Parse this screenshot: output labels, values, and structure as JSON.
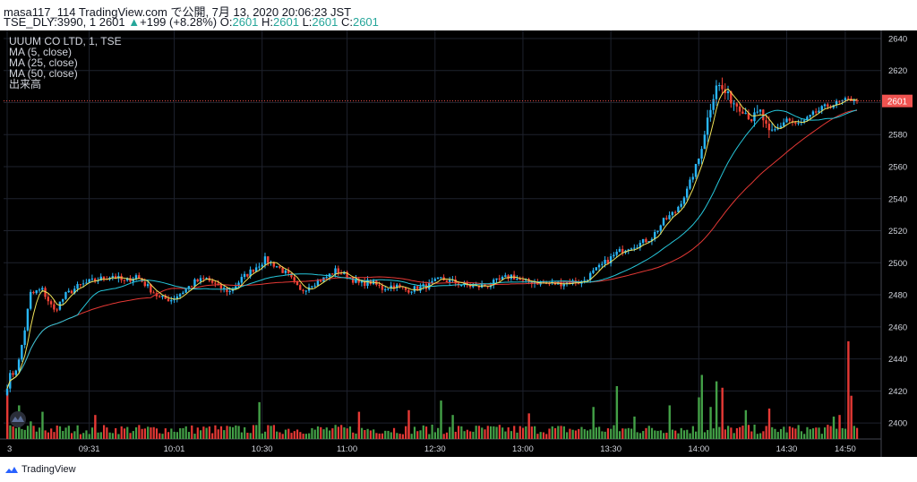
{
  "header": {
    "publisher_line": "masa117_114 TradingView.com で公開, 7月 13, 2020 20:06:23 JST",
    "symbol_prefix": "TSE_DLY:3990, 1 2601 ",
    "change_arrow": "▲",
    "change": "+199 (+8.28%)",
    "o_label": " O:",
    "o_value": "2601",
    "h_label": " H:",
    "h_value": "2601",
    "l_label": " L:",
    "l_value": "2601",
    "c_label": " C:",
    "c_value": "2601"
  },
  "legend": {
    "title": "UUUM CO LTD, 1, TSE",
    "ma5": "MA (5, close)",
    "ma25": "MA (25, close)",
    "ma50": "MA (50, close)",
    "volume": "出来高"
  },
  "colors": {
    "up": "#26a69a",
    "down": "#ef5350",
    "candle_up": "#29b6f6",
    "candle_down": "#f44336",
    "vol_up": "#43a047",
    "vol_down": "#e53935",
    "ma5": "#f0e35a",
    "ma25": "#26c6da",
    "ma50": "#e53935",
    "price_line": "#ef5350",
    "axis_text": "#d1d4dc"
  },
  "footer": {
    "brand": "TradingView",
    "logo_icon": "tradingview-logo-icon"
  },
  "chart_data": {
    "type": "candlestick",
    "title": "UUUM CO LTD, 1, TSE",
    "ylim": [
      2390,
      2645
    ],
    "y_ticks": [
      2400,
      2420,
      2440,
      2460,
      2480,
      2500,
      2520,
      2540,
      2560,
      2580,
      2600,
      2620,
      2640
    ],
    "x_tick_labels": [
      "3",
      "09:31",
      "10:01",
      "10:30",
      "11:00",
      "12:30",
      "13:00",
      "13:30",
      "14:00",
      "14:30",
      "14:50"
    ],
    "x_tick_index": [
      0,
      28,
      57,
      87,
      116,
      146,
      176,
      206,
      236,
      266,
      286
    ],
    "last_price": 2601,
    "last_price_label": "2601",
    "ma_lines": [
      {
        "name": "MA (5, close)",
        "key": "ma5"
      },
      {
        "name": "MA (25, close)",
        "key": "ma25"
      },
      {
        "name": "MA (50, close)",
        "key": "ma50"
      }
    ],
    "anchors": [
      [
        0,
        2425
      ],
      [
        4,
        2438
      ],
      [
        8,
        2480
      ],
      [
        12,
        2483
      ],
      [
        16,
        2470
      ],
      [
        20,
        2480
      ],
      [
        24,
        2485
      ],
      [
        28,
        2488
      ],
      [
        32,
        2490
      ],
      [
        36,
        2492
      ],
      [
        40,
        2488
      ],
      [
        44,
        2492
      ],
      [
        48,
        2485
      ],
      [
        52,
        2478
      ],
      [
        56,
        2477
      ],
      [
        60,
        2482
      ],
      [
        64,
        2488
      ],
      [
        68,
        2490
      ],
      [
        72,
        2485
      ],
      [
        76,
        2482
      ],
      [
        80,
        2490
      ],
      [
        84,
        2496
      ],
      [
        88,
        2502
      ],
      [
        92,
        2498
      ],
      [
        96,
        2492
      ],
      [
        100,
        2482
      ],
      [
        104,
        2487
      ],
      [
        108,
        2490
      ],
      [
        112,
        2495
      ],
      [
        116,
        2492
      ],
      [
        120,
        2487
      ],
      [
        124,
        2488
      ],
      [
        128,
        2484
      ],
      [
        132,
        2486
      ],
      [
        136,
        2483
      ],
      [
        140,
        2484
      ],
      [
        144,
        2486
      ],
      [
        148,
        2490
      ],
      [
        152,
        2488
      ],
      [
        156,
        2486
      ],
      [
        160,
        2485
      ],
      [
        164,
        2486
      ],
      [
        168,
        2489
      ],
      [
        172,
        2492
      ],
      [
        176,
        2488
      ],
      [
        180,
        2488
      ],
      [
        184,
        2487
      ],
      [
        188,
        2487
      ],
      [
        192,
        2488
      ],
      [
        196,
        2488
      ],
      [
        200,
        2494
      ],
      [
        204,
        2500
      ],
      [
        208,
        2506
      ],
      [
        212,
        2510
      ],
      [
        216,
        2512
      ],
      [
        220,
        2516
      ],
      [
        224,
        2526
      ],
      [
        228,
        2532
      ],
      [
        232,
        2545
      ],
      [
        236,
        2565
      ],
      [
        239,
        2590
      ],
      [
        242,
        2612
      ],
      [
        245,
        2606
      ],
      [
        248,
        2600
      ],
      [
        251,
        2596
      ],
      [
        254,
        2590
      ],
      [
        257,
        2594
      ],
      [
        260,
        2580
      ],
      [
        263,
        2584
      ],
      [
        266,
        2590
      ],
      [
        269,
        2586
      ],
      [
        272,
        2588
      ],
      [
        276,
        2594
      ],
      [
        280,
        2598
      ],
      [
        284,
        2600
      ],
      [
        288,
        2602
      ],
      [
        290,
        2603
      ]
    ],
    "volume_spikes": [
      [
        0,
        2420
      ],
      [
        4,
        2411
      ],
      [
        8,
        2401
      ],
      [
        12,
        2407
      ],
      [
        30,
        2405
      ],
      [
        86,
        2413
      ],
      [
        120,
        2407
      ],
      [
        137,
        2408
      ],
      [
        148,
        2414
      ],
      [
        152,
        2405
      ],
      [
        178,
        2406
      ],
      [
        200,
        2410
      ],
      [
        208,
        2423
      ],
      [
        214,
        2404
      ],
      [
        226,
        2411
      ],
      [
        236,
        2416
      ],
      [
        237,
        2430
      ],
      [
        240,
        2410
      ],
      [
        242,
        2426
      ],
      [
        244,
        2422
      ],
      [
        252,
        2408
      ],
      [
        260,
        2409
      ],
      [
        282,
        2404
      ],
      [
        284,
        2405
      ],
      [
        287,
        2451
      ],
      [
        288,
        2417
      ]
    ]
  }
}
